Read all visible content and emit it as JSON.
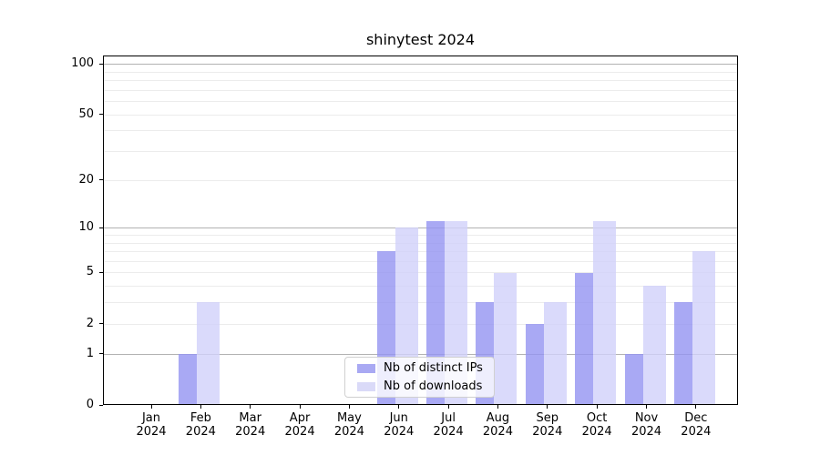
{
  "title": "shinytest 2024",
  "legend": {
    "items": [
      {
        "key": "ips",
        "label": "Nb of distinct IPs"
      },
      {
        "key": "downloads",
        "label": "Nb of downloads"
      }
    ]
  },
  "colors": {
    "ips_fill": "rgba(148,148,241,0.8)",
    "downloads_fill": "rgba(209,209,250,0.8)",
    "ips_legend": "#a9a9f3",
    "downloads_legend": "#dadaf8",
    "grid_major": "#b2b2b2",
    "grid_minor": "#ececec",
    "axis": "#000000",
    "text": "#000000",
    "legend_border": "#d0d0d0"
  },
  "chart_data": {
    "type": "bar",
    "title": "shinytest 2024",
    "categories": [
      "Jan",
      "Feb",
      "Mar",
      "Apr",
      "May",
      "Jun",
      "Jul",
      "Aug",
      "Sep",
      "Oct",
      "Nov",
      "Dec"
    ],
    "category_sublabel": "2024",
    "series": [
      {
        "key": "ips",
        "name": "Nb of distinct IPs",
        "values": [
          0,
          1,
          0,
          0,
          0,
          7,
          11,
          3,
          2,
          5,
          1,
          3
        ]
      },
      {
        "key": "downloads",
        "name": "Nb of downloads",
        "values": [
          0,
          3,
          0,
          0,
          0,
          10,
          11,
          5,
          3,
          11,
          4,
          7
        ]
      }
    ],
    "y_axis": {
      "scale": "log10(value+1)",
      "tick_values": [
        0,
        1,
        2,
        5,
        10,
        20,
        50,
        100
      ],
      "tick_labels": [
        "0",
        "1",
        "2",
        "5",
        "10",
        "20",
        "50",
        "100"
      ],
      "major_gridlines": [
        1,
        10,
        100
      ],
      "minor_gridlines": [
        2,
        3,
        4,
        5,
        6,
        7,
        8,
        9,
        20,
        30,
        40,
        50,
        60,
        70,
        80,
        90
      ],
      "ylim": [
        0,
        112
      ]
    },
    "xlabel": "",
    "ylabel": "",
    "grid": "on",
    "legend_position": "inside lower-center"
  }
}
